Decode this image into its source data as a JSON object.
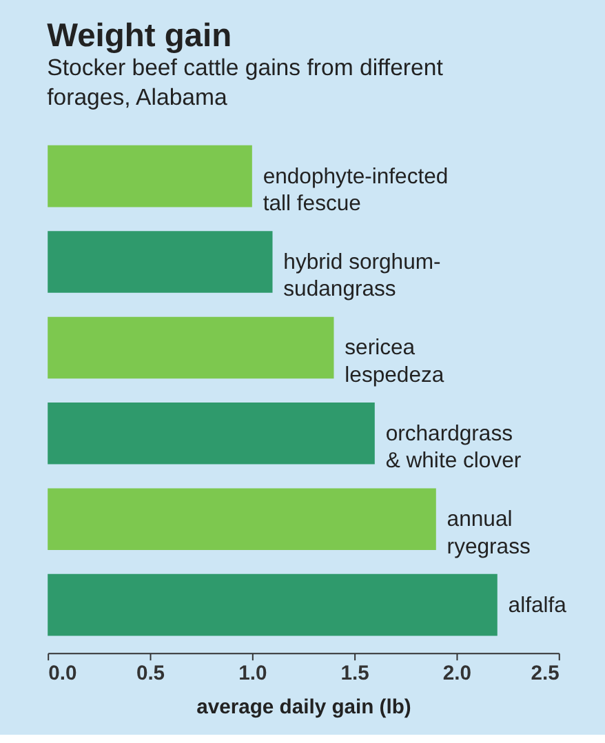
{
  "chart_data": {
    "type": "bar",
    "orientation": "horizontal",
    "title": "Weight gain",
    "subtitle": "Stocker beef cattle gains from different forages, Alabama",
    "xlabel": "average daily gain (lb)",
    "categories": [
      "endophyte-infected\ntall fescue",
      "hybrid sorghum-\nsudangrass",
      "sericea\nlespedeza",
      "orchardgrass\n& white clover",
      "annual\nryegrass",
      "alfalfa"
    ],
    "values": [
      1.0,
      1.1,
      1.4,
      1.6,
      1.9,
      2.2
    ],
    "colors": [
      "#7dc84f",
      "#2f9a6c",
      "#7dc84f",
      "#2f9a6c",
      "#7dc84f",
      "#2f9a6c"
    ],
    "xlim": [
      0,
      2.5
    ],
    "xticks": [
      {
        "value": 0,
        "label": "0.0"
      },
      {
        "value": 0.5,
        "label": "0.5"
      },
      {
        "value": 1,
        "label": "1.0"
      },
      {
        "value": 1.5,
        "label": "1.5"
      },
      {
        "value": 2,
        "label": "2.0"
      },
      {
        "value": 2.5,
        "label": "2.5"
      }
    ],
    "grid": false
  }
}
